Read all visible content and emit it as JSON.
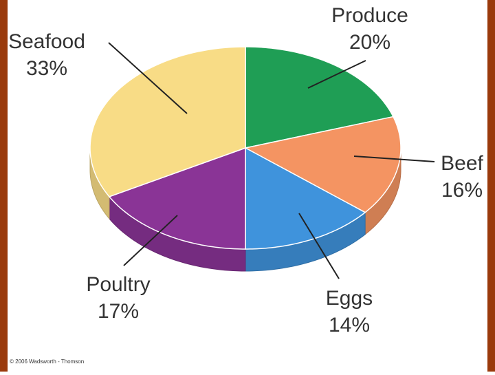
{
  "chart_data": {
    "type": "pie3d",
    "categories": [
      "Produce",
      "Beef",
      "Eggs",
      "Poultry",
      "Seafood"
    ],
    "values": [
      20,
      16,
      14,
      17,
      33
    ],
    "value_labels": [
      "20%",
      "16%",
      "14%",
      "17%",
      "33%"
    ],
    "colors": [
      "#1f9e55",
      "#f49462",
      "#3f93dc",
      "#8a3496",
      "#f8dc86"
    ],
    "credit": "© 2006 Wadsworth - Thomson"
  }
}
